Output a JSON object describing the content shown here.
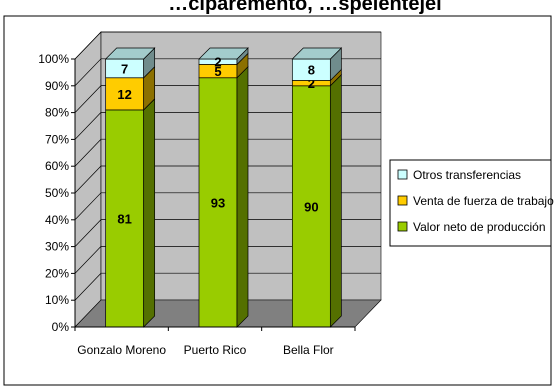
{
  "chart_data": {
    "type": "bar",
    "stacked": true,
    "percent_stacked": true,
    "three_d": true,
    "title": "…ciparemento, …spelentejei",
    "categories": [
      "Gonzalo Moreno",
      "Puerto Rico",
      "Bella Flor"
    ],
    "series": [
      {
        "name": "Valor neto de producción",
        "values": [
          81,
          93,
          90
        ],
        "color": "#99cc00"
      },
      {
        "name": "Venta de fuerza de trabajo",
        "values": [
          12,
          5,
          2
        ],
        "color": "#ffcc00"
      },
      {
        "name": "Otros transferencias",
        "values": [
          7,
          2,
          8
        ],
        "color": "#ccffff"
      }
    ],
    "y_ticks": [
      "0%",
      "10%",
      "20%",
      "30%",
      "40%",
      "50%",
      "60%",
      "70%",
      "80%",
      "90%",
      "100%"
    ],
    "ylim": [
      0,
      100
    ],
    "grid": true,
    "legend_position": "right",
    "colors": {
      "wall": "#c0c0c0",
      "floor": "#808080",
      "gridline": "#000000"
    }
  }
}
